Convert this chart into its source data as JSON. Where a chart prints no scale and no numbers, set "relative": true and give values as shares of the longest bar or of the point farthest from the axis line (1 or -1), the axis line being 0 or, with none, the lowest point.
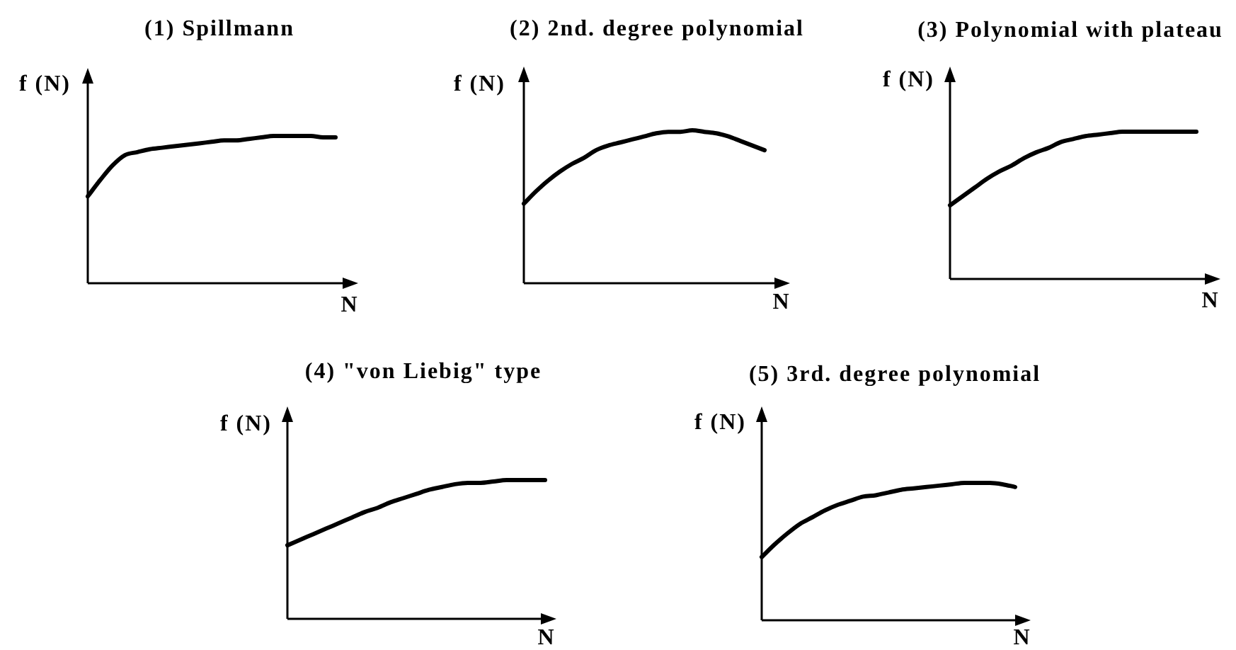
{
  "chart_data": [
    {
      "type": "line",
      "title": "(1) Spillmann",
      "xlabel": "N",
      "ylabel": "f (N)",
      "relative": true,
      "marker": "none",
      "color": "#000000",
      "categories": [
        null,
        null,
        null,
        null,
        null,
        null,
        null,
        null,
        null,
        null,
        null,
        null,
        null,
        null,
        null,
        null,
        null,
        null,
        null,
        null,
        null
      ],
      "values": [
        0.59,
        0.7,
        0.8,
        0.87,
        0.89,
        0.91,
        0.92,
        0.93,
        0.94,
        0.95,
        0.96,
        0.97,
        0.97,
        0.98,
        0.99,
        1,
        1,
        1,
        1,
        0.99,
        0.99
      ]
    },
    {
      "type": "line",
      "title": "(2) 2nd. degree polynomial",
      "xlabel": "N",
      "ylabel": "f (N)",
      "relative": true,
      "marker": "none",
      "color": "#000000",
      "categories": [
        null,
        null,
        null,
        null,
        null,
        null,
        null,
        null,
        null,
        null,
        null,
        null,
        null,
        null,
        null,
        null,
        null,
        null,
        null,
        null,
        null
      ],
      "values": [
        0.52,
        0.6,
        0.67,
        0.73,
        0.78,
        0.82,
        0.87,
        0.9,
        0.92,
        0.94,
        0.96,
        0.98,
        0.99,
        0.99,
        1,
        0.99,
        0.98,
        0.96,
        0.93,
        0.9,
        0.87
      ]
    },
    {
      "type": "line",
      "title": "(3) Polynomial with plateau",
      "xlabel": "N",
      "ylabel": "f (N)",
      "relative": true,
      "marker": "none",
      "color": "#000000",
      "categories": [
        null,
        null,
        null,
        null,
        null,
        null,
        null,
        null,
        null,
        null,
        null,
        null,
        null,
        null,
        null,
        null,
        null,
        null,
        null,
        null,
        null
      ],
      "values": [
        0.5,
        0.56,
        0.62,
        0.68,
        0.73,
        0.77,
        0.82,
        0.86,
        0.89,
        0.93,
        0.95,
        0.97,
        0.98,
        0.99,
        1,
        1,
        1,
        1,
        1,
        1,
        1
      ]
    },
    {
      "type": "line",
      "title": "(4) \"von Liebig\" type",
      "xlabel": "N",
      "ylabel": "f (N)",
      "relative": true,
      "marker": "none",
      "color": "#000000",
      "categories": [
        null,
        null,
        null,
        null,
        null,
        null,
        null,
        null,
        null,
        null,
        null,
        null,
        null,
        null,
        null,
        null,
        null,
        null,
        null,
        null,
        null
      ],
      "values": [
        0.53,
        0.57,
        0.61,
        0.65,
        0.69,
        0.73,
        0.77,
        0.8,
        0.84,
        0.87,
        0.9,
        0.93,
        0.95,
        0.97,
        0.98,
        0.98,
        0.99,
        1,
        1,
        1,
        1
      ]
    },
    {
      "type": "line",
      "title": "(5) 3rd. degree polynomial",
      "xlabel": "N",
      "ylabel": "f (N)",
      "relative": true,
      "marker": "none",
      "color": "#000000",
      "categories": [
        null,
        null,
        null,
        null,
        null,
        null,
        null,
        null,
        null,
        null,
        null,
        null,
        null,
        null,
        null,
        null,
        null,
        null,
        null,
        null,
        null
      ],
      "values": [
        0.46,
        0.55,
        0.63,
        0.7,
        0.75,
        0.8,
        0.84,
        0.87,
        0.9,
        0.91,
        0.93,
        0.95,
        0.96,
        0.97,
        0.98,
        0.99,
        1,
        1,
        1,
        0.99,
        0.97
      ]
    }
  ]
}
